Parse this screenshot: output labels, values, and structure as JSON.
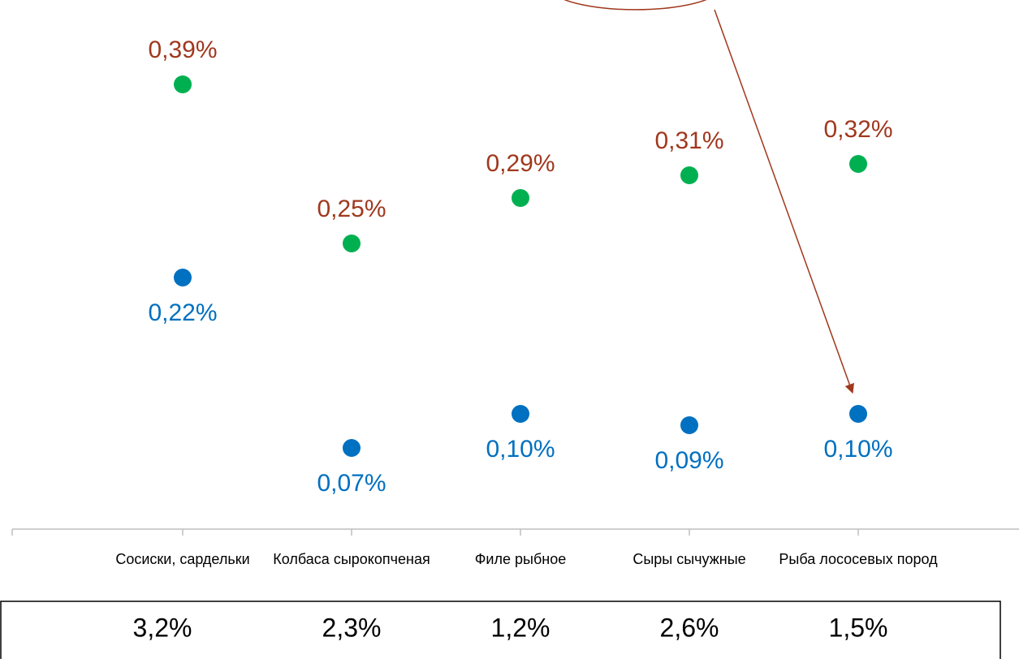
{
  "chart_data": {
    "type": "dot",
    "categories": [
      "Сосиски, сардельки",
      "Колбаса сырокопченая",
      "Филе рыбное",
      "Сыры сычужные",
      "Рыба лососевых пород"
    ],
    "series": [
      {
        "color": "#00b050",
        "label_color": "#a0381e",
        "label_position": "above",
        "values": [
          0.39,
          0.25,
          0.29,
          0.31,
          0.32
        ],
        "value_labels": [
          "0,39%",
          "0,25%",
          "0,29%",
          "0,31%",
          "0,32%"
        ]
      },
      {
        "color": "#0070c0",
        "label_color": "#0070c0",
        "label_position": "below",
        "values": [
          0.22,
          0.07,
          0.1,
          0.09,
          0.1
        ],
        "value_labels": [
          "0,22%",
          "0,07%",
          "0,10%",
          "0,09%",
          "0,10%"
        ]
      }
    ],
    "ylim": [
      0,
      0.45
    ],
    "bottom_values": [
      3.2,
      2.3,
      1.2,
      2.6,
      1.5
    ],
    "bottom_value_labels": [
      "3,2%",
      "2,3%",
      "1,2%",
      "2,6%",
      "1,5%"
    ]
  }
}
